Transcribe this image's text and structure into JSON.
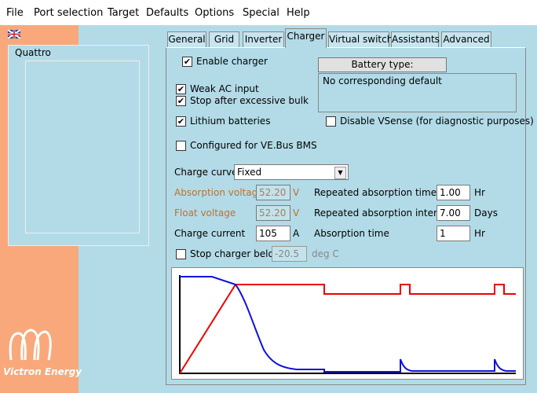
{
  "menu": [
    "File",
    "Port selection",
    "Target",
    "Defaults",
    "Options",
    "Special",
    "Help"
  ],
  "device": {
    "name": "Quattro"
  },
  "logo": "Victron Energy",
  "tabs": [
    {
      "label": "General",
      "selected": false
    },
    {
      "label": "Grid",
      "selected": false
    },
    {
      "label": "Inverter",
      "selected": false
    },
    {
      "label": "Charger",
      "selected": true
    },
    {
      "label": "Virtual switch",
      "selected": false
    },
    {
      "label": "Assistants",
      "selected": false
    },
    {
      "label": "Advanced",
      "selected": false
    }
  ],
  "checkboxes": [
    {
      "label": "Enable charger",
      "checked": true
    },
    {
      "label": "Weak AC input",
      "checked": true
    },
    {
      "label": "Stop after excessive bulk",
      "checked": true
    },
    {
      "label": "Lithium batteries",
      "checked": true
    },
    {
      "label": "Disable VSense (for diagnostic purposes)",
      "checked": false
    },
    {
      "label": "Configured for VE.Bus BMS",
      "checked": false
    }
  ],
  "battery_type": {
    "button": "Battery type:",
    "text": "No corresponding default"
  },
  "charge_curve": {
    "label": "Charge curve",
    "value": "Fixed"
  },
  "fields": [
    {
      "label": "Absorption voltage",
      "value": "52.20",
      "unit": "V"
    },
    {
      "label": "Float voltage",
      "value": "52.20",
      "unit": "V"
    },
    {
      "label": "Charge current",
      "value": "105",
      "unit": "A"
    },
    {
      "label": "Repeated absorption time",
      "value": "1.00",
      "unit": "Hr"
    },
    {
      "label": "Repeated absorption interval",
      "value": "7.00",
      "unit": "Days"
    },
    {
      "label": "Absorption time",
      "value": "1",
      "unit": "Hr"
    }
  ],
  "stop_charger": {
    "label": "Stop charger below",
    "checked": false,
    "value": "-20.5",
    "unit": "deg C"
  }
}
